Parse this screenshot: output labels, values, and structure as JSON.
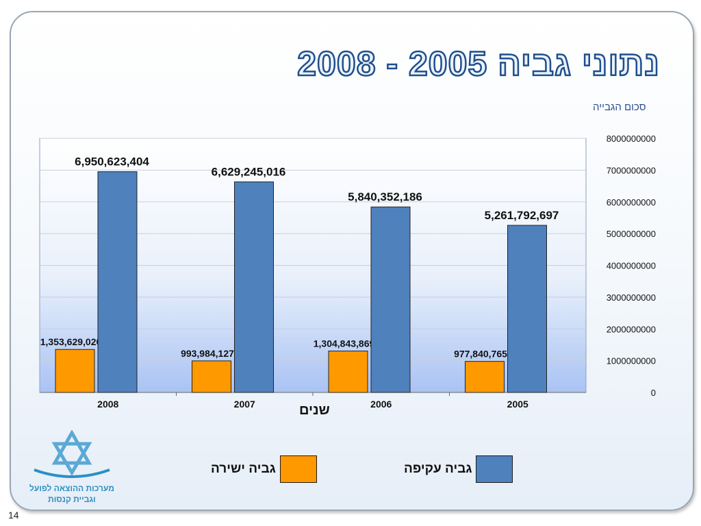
{
  "slide": {
    "title": "נתוני גביה 2005 - 2008",
    "page_number": "14"
  },
  "logo": {
    "line1": "מערכות ההוצאה לפועל",
    "line2": "וגביית קנסות"
  },
  "colors": {
    "direct": "#ff9900",
    "indirect": "#4f81bd",
    "title_stroke": "#1f4e8c"
  },
  "chart_data": {
    "type": "bar",
    "ylabel": "סכום הגבייה",
    "xlabel": "שנים",
    "categories": [
      "2008",
      "2007",
      "2006",
      "2005"
    ],
    "series": [
      {
        "name": "גביה ישירה",
        "values": [
          1353629020,
          993984127,
          1304843869,
          977840765
        ],
        "labels": [
          "1,353,629,020",
          "993,984,127",
          "1,304,843,869",
          "977,840,765"
        ]
      },
      {
        "name": "גביה עקיפה",
        "values": [
          6950623404,
          6629245016,
          5840352186,
          5261792697
        ],
        "labels": [
          "6,950,623,404",
          "6,629,245,016",
          "5,840,352,186",
          "5,261,792,697"
        ]
      }
    ],
    "ylim": [
      0,
      8000000000
    ],
    "yticks": [
      "0",
      "1000000000",
      "2000000000",
      "3000000000",
      "4000000000",
      "5000000000",
      "6000000000",
      "7000000000",
      "8000000000"
    ],
    "grid": true,
    "y_axis_side": "right",
    "legend_position": "bottom"
  }
}
